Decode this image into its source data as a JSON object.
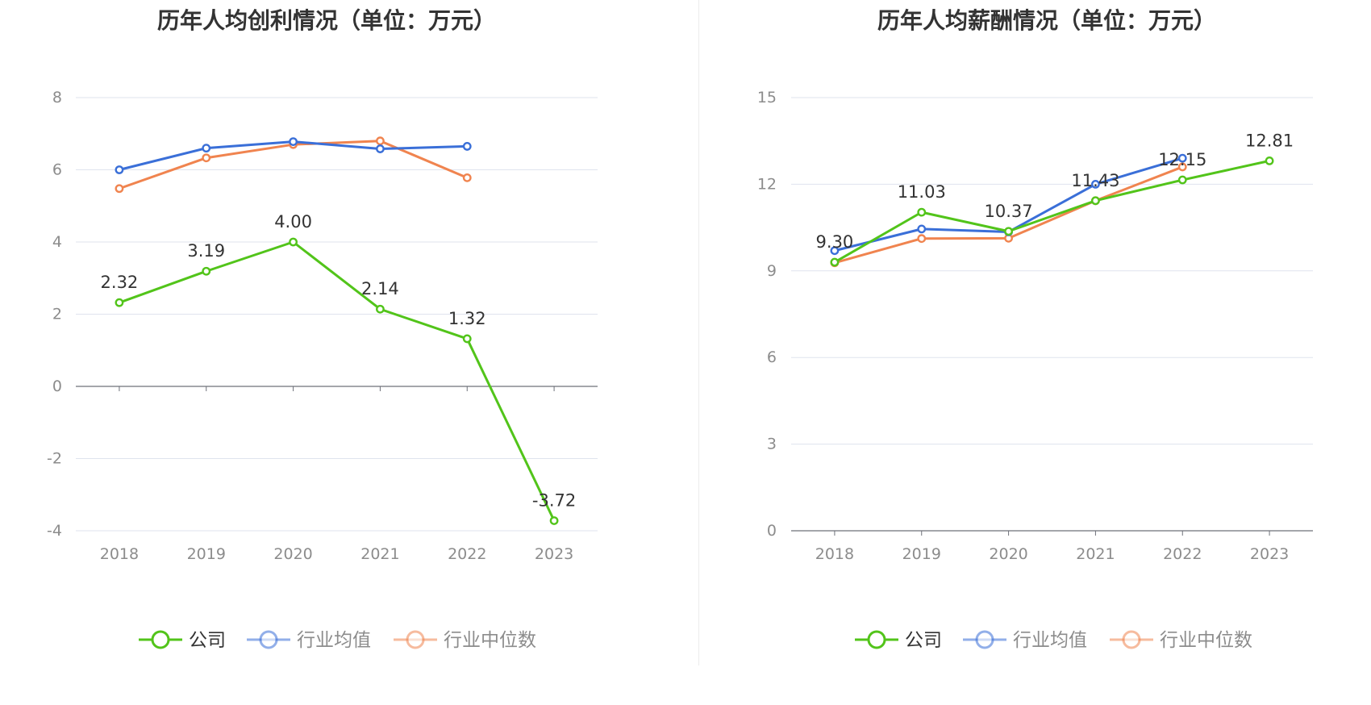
{
  "chart_data": [
    {
      "type": "line",
      "title": "历年人均创利情况（单位：万元）",
      "categories": [
        "2018",
        "2019",
        "2020",
        "2021",
        "2022",
        "2023"
      ],
      "ylim": [
        -4,
        8
      ],
      "yticks": [
        -4,
        -2,
        0,
        2,
        4,
        6,
        8
      ],
      "grid": true,
      "legend_position": "bottom",
      "series": [
        {
          "name": "公司",
          "color": "#52c41a",
          "values": [
            2.32,
            3.19,
            4.0,
            2.14,
            1.32,
            -3.72
          ],
          "labels": [
            "2.32",
            "3.19",
            "4.00",
            "2.14",
            "1.32",
            "-3.72"
          ]
        },
        {
          "name": "行业均值",
          "color": "#3a6fd8",
          "values": [
            6.0,
            6.6,
            6.78,
            6.58,
            6.65,
            null
          ]
        },
        {
          "name": "行业中位数",
          "color": "#f0844f",
          "values": [
            5.48,
            6.33,
            6.7,
            6.8,
            5.78,
            null
          ]
        }
      ]
    },
    {
      "type": "line",
      "title": "历年人均薪酬情况（单位：万元）",
      "categories": [
        "2018",
        "2019",
        "2020",
        "2021",
        "2022",
        "2023"
      ],
      "ylim": [
        0,
        15
      ],
      "yticks": [
        0,
        3,
        6,
        9,
        12,
        15
      ],
      "grid": true,
      "legend_position": "bottom",
      "series": [
        {
          "name": "公司",
          "color": "#52c41a",
          "values": [
            9.3,
            11.03,
            10.37,
            11.43,
            12.15,
            12.81
          ],
          "labels": [
            "9.30",
            "11.03",
            "10.37",
            "11.43",
            "12.15",
            "12.81"
          ]
        },
        {
          "name": "行业均值",
          "color": "#3a6fd8",
          "values": [
            9.7,
            10.45,
            10.35,
            12.0,
            12.9,
            null
          ]
        },
        {
          "name": "行业中位数",
          "color": "#f0844f",
          "values": [
            9.28,
            10.12,
            10.13,
            11.43,
            12.6,
            null
          ]
        }
      ]
    }
  ]
}
